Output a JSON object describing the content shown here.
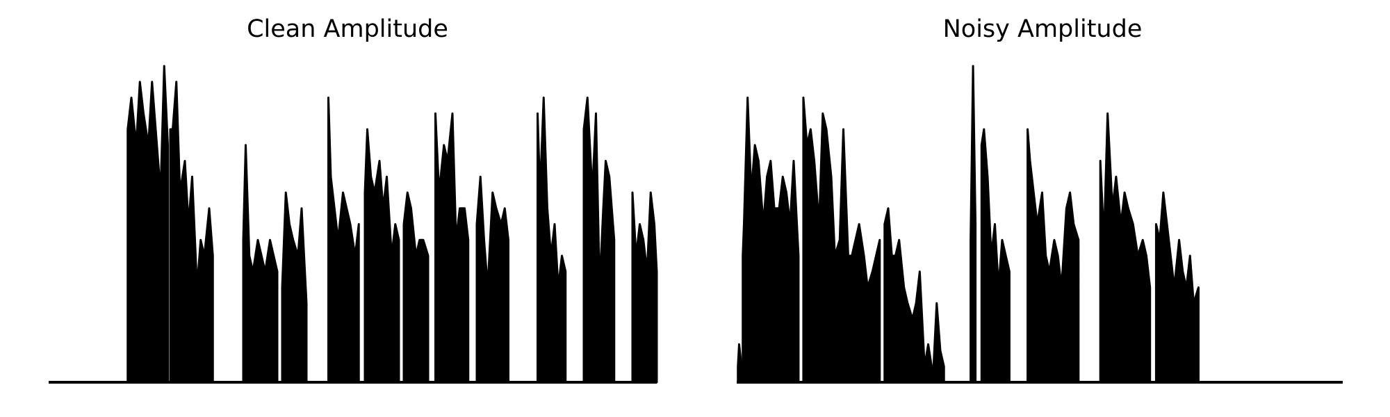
{
  "chart_data": [
    {
      "type": "area",
      "title": "Clean Amplitude",
      "axes_visible": false,
      "color": "#000000",
      "xlim": [
        0,
        1000
      ],
      "ylim": [
        0,
        1.0
      ],
      "bursts": [
        [
          [
            65,
            80
          ],
          [
            68,
            90
          ],
          [
            72,
            75
          ],
          [
            75,
            95
          ],
          [
            78,
            85
          ],
          [
            82,
            75
          ],
          [
            85,
            95
          ],
          [
            88,
            80
          ],
          [
            92,
            60
          ],
          [
            95,
            100
          ],
          [
            98,
            75
          ]
        ],
        [
          [
            100,
            80
          ],
          [
            102,
            80
          ],
          [
            105,
            95
          ],
          [
            108,
            60
          ],
          [
            112,
            70
          ],
          [
            115,
            50
          ],
          [
            118,
            65
          ],
          [
            122,
            30
          ],
          [
            125,
            45
          ],
          [
            128,
            40
          ],
          [
            132,
            55
          ],
          [
            135,
            40
          ]
        ],
        [
          [
            160,
            45
          ],
          [
            162,
            75
          ],
          [
            165,
            40
          ],
          [
            168,
            35
          ],
          [
            172,
            45
          ],
          [
            175,
            40
          ],
          [
            178,
            35
          ],
          [
            182,
            45
          ],
          [
            185,
            40
          ],
          [
            188,
            35
          ]
        ],
        [
          [
            192,
            30
          ],
          [
            195,
            60
          ],
          [
            198,
            50
          ],
          [
            201,
            45
          ],
          [
            205,
            40
          ],
          [
            208,
            55
          ],
          [
            212,
            25
          ]
        ],
        [
          [
            230,
            90
          ],
          [
            232,
            65
          ],
          [
            235,
            55
          ],
          [
            238,
            45
          ],
          [
            242,
            60
          ],
          [
            245,
            55
          ],
          [
            248,
            50
          ],
          [
            252,
            40
          ],
          [
            255,
            50
          ]
        ],
        [
          [
            260,
            60
          ],
          [
            262,
            80
          ],
          [
            265,
            65
          ],
          [
            268,
            60
          ],
          [
            272,
            70
          ],
          [
            275,
            55
          ],
          [
            278,
            65
          ],
          [
            282,
            40
          ],
          [
            285,
            50
          ],
          [
            288,
            45
          ]
        ],
        [
          [
            292,
            50
          ],
          [
            295,
            60
          ],
          [
            298,
            55
          ],
          [
            302,
            40
          ],
          [
            305,
            45
          ],
          [
            308,
            45
          ],
          [
            312,
            40
          ]
        ],
        [
          [
            318,
            85
          ],
          [
            321,
            60
          ],
          [
            325,
            75
          ],
          [
            328,
            70
          ],
          [
            332,
            85
          ],
          [
            335,
            45
          ],
          [
            338,
            55
          ],
          [
            342,
            55
          ],
          [
            345,
            45
          ]
        ],
        [
          [
            352,
            50
          ],
          [
            355,
            65
          ],
          [
            358,
            45
          ],
          [
            361,
            30
          ],
          [
            365,
            60
          ],
          [
            368,
            55
          ],
          [
            372,
            50
          ],
          [
            375,
            55
          ],
          [
            378,
            45
          ]
        ],
        [
          [
            402,
            85
          ],
          [
            404,
            60
          ],
          [
            407,
            90
          ],
          [
            410,
            55
          ],
          [
            413,
            40
          ],
          [
            416,
            50
          ],
          [
            419,
            30
          ],
          [
            422,
            40
          ],
          [
            425,
            35
          ]
        ],
        [
          [
            440,
            80
          ],
          [
            443,
            90
          ],
          [
            447,
            60
          ],
          [
            450,
            85
          ],
          [
            453,
            30
          ],
          [
            456,
            55
          ],
          [
            458,
            70
          ],
          [
            461,
            65
          ],
          [
            465,
            45
          ]
        ],
        [
          [
            480,
            60
          ],
          [
            483,
            40
          ],
          [
            486,
            50
          ],
          [
            489,
            45
          ],
          [
            492,
            35
          ],
          [
            495,
            60
          ],
          [
            498,
            50
          ],
          [
            500,
            35
          ]
        ]
      ]
    },
    {
      "type": "area",
      "title": "Noisy Amplitude",
      "axes_visible": false,
      "color": "#000000",
      "xlim": [
        0,
        1000
      ],
      "ylim": [
        0,
        1.0
      ],
      "bursts": [
        [
          [
            1,
            5
          ],
          [
            2,
            12
          ],
          [
            4,
            5
          ]
        ],
        [
          [
            5,
            40
          ],
          [
            6,
            50
          ],
          [
            9,
            90
          ],
          [
            12,
            60
          ],
          [
            15,
            75
          ],
          [
            18,
            70
          ],
          [
            22,
            50
          ],
          [
            25,
            65
          ],
          [
            28,
            70
          ],
          [
            31,
            55
          ],
          [
            35,
            55
          ],
          [
            38,
            65
          ],
          [
            41,
            60
          ],
          [
            44,
            50
          ],
          [
            47,
            70
          ],
          [
            51,
            40
          ]
        ],
        [
          [
            55,
            90
          ],
          [
            58,
            75
          ],
          [
            61,
            80
          ],
          [
            64,
            70
          ],
          [
            68,
            50
          ],
          [
            71,
            85
          ],
          [
            74,
            80
          ],
          [
            78,
            65
          ],
          [
            81,
            40
          ],
          [
            85,
            45
          ],
          [
            88,
            80
          ],
          [
            92,
            40
          ],
          [
            95,
            40
          ],
          [
            98,
            45
          ],
          [
            101,
            50
          ],
          [
            105,
            40
          ],
          [
            108,
            30
          ],
          [
            112,
            35
          ],
          [
            115,
            40
          ],
          [
            118,
            45
          ]
        ],
        [
          [
            122,
            50
          ],
          [
            125,
            55
          ],
          [
            128,
            40
          ],
          [
            131,
            40
          ],
          [
            134,
            45
          ],
          [
            138,
            30
          ],
          [
            141,
            25
          ],
          [
            145,
            20
          ],
          [
            148,
            25
          ],
          [
            151,
            35
          ],
          [
            155,
            5
          ],
          [
            158,
            12
          ],
          [
            162,
            2
          ],
          [
            165,
            25
          ],
          [
            168,
            10
          ],
          [
            171,
            5
          ]
        ],
        [
          [
            193,
            45
          ],
          [
            195,
            100
          ],
          [
            197,
            50
          ]
        ],
        [
          [
            202,
            75
          ],
          [
            204,
            80
          ],
          [
            207,
            65
          ],
          [
            210,
            40
          ],
          [
            213,
            50
          ],
          [
            216,
            30
          ],
          [
            219,
            45
          ],
          [
            222,
            40
          ],
          [
            225,
            35
          ]
        ],
        [
          [
            240,
            80
          ],
          [
            242,
            70
          ],
          [
            245,
            60
          ],
          [
            248,
            50
          ],
          [
            252,
            60
          ],
          [
            255,
            40
          ],
          [
            258,
            35
          ],
          [
            262,
            45
          ],
          [
            265,
            40
          ],
          [
            268,
            30
          ],
          [
            272,
            55
          ],
          [
            275,
            60
          ],
          [
            278,
            50
          ],
          [
            282,
            45
          ]
        ],
        [
          [
            300,
            70
          ],
          [
            303,
            45
          ],
          [
            306,
            85
          ],
          [
            310,
            55
          ],
          [
            313,
            65
          ],
          [
            317,
            50
          ],
          [
            320,
            60
          ],
          [
            323,
            55
          ],
          [
            327,
            50
          ],
          [
            331,
            40
          ],
          [
            335,
            45
          ],
          [
            338,
            40
          ],
          [
            341,
            30
          ]
        ],
        [
          [
            346,
            50
          ],
          [
            349,
            45
          ],
          [
            352,
            60
          ],
          [
            355,
            50
          ],
          [
            358,
            40
          ],
          [
            361,
            30
          ],
          [
            365,
            45
          ],
          [
            368,
            35
          ],
          [
            371,
            30
          ],
          [
            374,
            40
          ],
          [
            377,
            25
          ],
          [
            381,
            30
          ]
        ]
      ]
    }
  ]
}
